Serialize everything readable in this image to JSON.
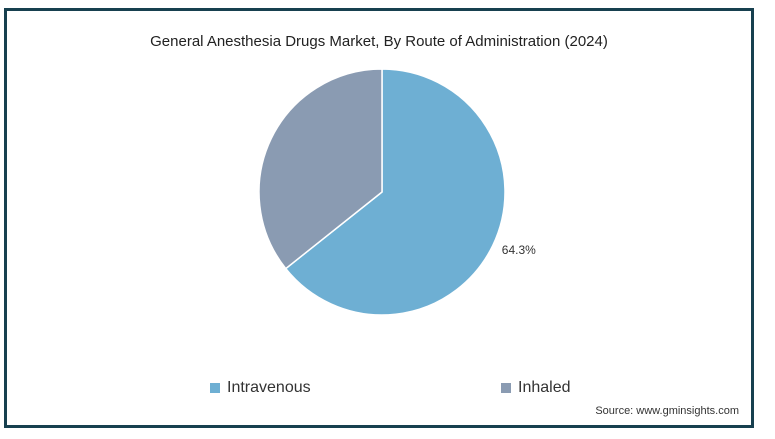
{
  "chart_data": {
    "type": "pie",
    "title": "General Anesthesia Drugs Market, By Route of Administration (2024)",
    "slices": [
      {
        "label": "Intravenous",
        "value": 64.3,
        "color": "#6eafd3",
        "data_label": "64.3%"
      },
      {
        "label": "Inhaled",
        "value": 35.7,
        "color": "#8a9bb2",
        "data_label": ""
      }
    ],
    "legend_position": "bottom"
  },
  "source": "Source: www.gminsights.com",
  "colors": {
    "frame": "#17404f"
  }
}
